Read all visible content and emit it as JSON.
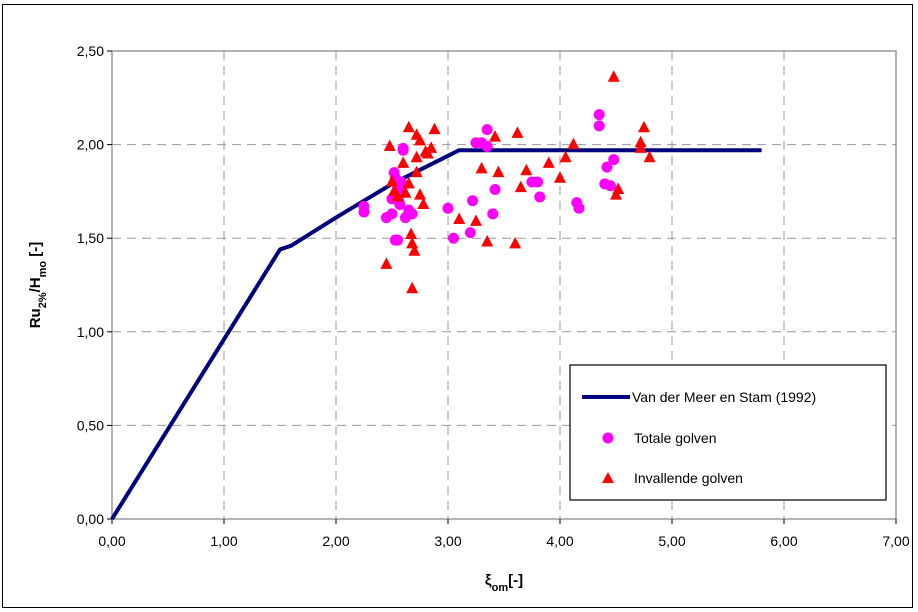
{
  "chart_data": {
    "type": "scatter",
    "title": "",
    "xlabel": "ξom[-]",
    "ylabel": "Ru2%/Hmo [-]",
    "xlabel_parts": {
      "base": "ξ",
      "sub": "om",
      "suffix": "[-]"
    },
    "ylabel_parts": {
      "base1": "Ru",
      "sub1": "2%",
      "mid": "/H",
      "sub2": "mo",
      "suffix": " [-]"
    },
    "xlim": [
      0,
      7
    ],
    "ylim": [
      0,
      2.5
    ],
    "x_ticks": [
      0,
      1,
      2,
      3,
      4,
      5,
      6,
      7
    ],
    "y_ticks": [
      0,
      0.5,
      1,
      1.5,
      2,
      2.5
    ],
    "x_tick_labels": [
      "0,00",
      "1,00",
      "2,00",
      "3,00",
      "4,00",
      "5,00",
      "6,00",
      "7,00"
    ],
    "y_tick_labels": [
      "0,00",
      "0,50",
      "1,00",
      "1,50",
      "2,00",
      "2,50"
    ],
    "grid": true,
    "legend_position": "bottom-right",
    "series": [
      {
        "name": "Van der Meer en Stam (1992)",
        "kind": "line",
        "color": "#000080",
        "x": [
          0,
          1.5,
          1.6,
          2.0,
          2.5,
          3.1,
          5.8
        ],
        "y": [
          0,
          1.44,
          1.46,
          1.61,
          1.79,
          1.97,
          1.97
        ]
      },
      {
        "name": "Totale golven",
        "kind": "circle",
        "color": "#ff00ff",
        "x": [
          2.25,
          2.25,
          2.45,
          2.5,
          2.5,
          2.52,
          2.53,
          2.55,
          2.55,
          2.56,
          2.57,
          2.58,
          2.6,
          2.62,
          2.65,
          2.53,
          2.55,
          2.6,
          2.53,
          2.58,
          2.68,
          3.0,
          3.05,
          3.2,
          3.22,
          3.25,
          3.3,
          3.35,
          3.4,
          3.42,
          3.35,
          3.75,
          3.8,
          3.82,
          4.15,
          4.17,
          4.35,
          4.35,
          4.4,
          4.42,
          4.45,
          4.48
        ],
        "y": [
          1.67,
          1.64,
          1.61,
          1.63,
          1.71,
          1.85,
          1.82,
          1.78,
          1.74,
          1.7,
          1.68,
          1.8,
          1.97,
          1.61,
          1.65,
          1.49,
          1.49,
          1.98,
          1.73,
          1.75,
          1.63,
          1.66,
          1.5,
          1.53,
          1.7,
          2.01,
          2.01,
          2.08,
          1.63,
          1.76,
          1.99,
          1.8,
          1.8,
          1.72,
          1.69,
          1.66,
          2.16,
          2.1,
          1.79,
          1.88,
          1.78,
          1.92
        ]
      },
      {
        "name": "Invallende golven",
        "kind": "triangle",
        "color": "#ff0000",
        "x": [
          2.45,
          2.48,
          2.5,
          2.52,
          2.55,
          2.6,
          2.62,
          2.65,
          2.65,
          2.67,
          2.68,
          2.7,
          2.72,
          2.72,
          2.75,
          2.75,
          2.78,
          2.8,
          2.82,
          2.85,
          2.88,
          2.68,
          2.72,
          3.1,
          3.25,
          3.3,
          3.35,
          3.42,
          3.45,
          3.6,
          3.62,
          3.65,
          3.7,
          3.9,
          4.0,
          4.05,
          4.12,
          4.48,
          4.5,
          4.52,
          4.72,
          4.72,
          4.75,
          4.8
        ],
        "y": [
          1.36,
          1.99,
          1.8,
          1.75,
          1.72,
          1.9,
          1.74,
          2.09,
          1.79,
          1.52,
          1.47,
          1.43,
          2.05,
          1.85,
          2.02,
          1.73,
          1.68,
          1.96,
          1.95,
          1.98,
          2.08,
          1.23,
          1.93,
          1.6,
          1.59,
          1.87,
          1.48,
          2.04,
          1.85,
          1.47,
          2.06,
          1.77,
          1.86,
          1.9,
          1.82,
          1.93,
          2.0,
          2.36,
          1.73,
          1.76,
          1.98,
          2.01,
          2.09,
          1.93
        ]
      }
    ]
  }
}
